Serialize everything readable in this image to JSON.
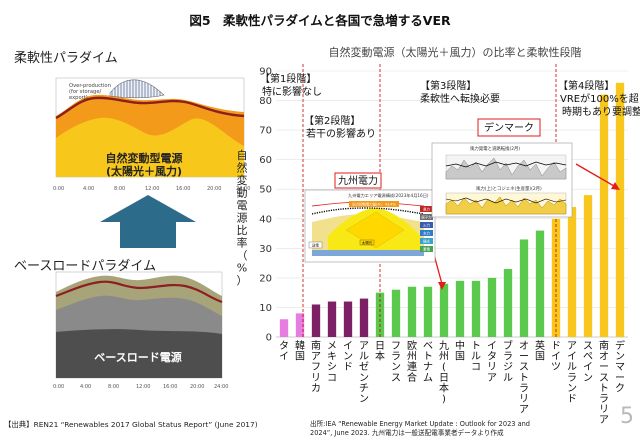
{
  "slide": {
    "title": "図5　柔軟性パラダイムと各国で急増するVER",
    "flex_paradigm_label": "柔軟性パラダイム",
    "base_paradigm_label": "ベースロードパラダイム",
    "variable_power_text": [
      "自然変動型電源",
      "(太陽光＋風力)"
    ],
    "baseload_text": "ベースロード電源",
    "overproduction_note": [
      "Over-production",
      "(for storage/",
      "export)"
    ],
    "time_ticks": [
      "0:00",
      "4:00",
      "8:00",
      "12:00",
      "16:00",
      "20:00",
      "24:00"
    ],
    "page_number": "5",
    "source_left": "【出典】REN21 “Renewables 2017 Global Status Report” (June 2017)",
    "source_right": [
      "出所:IEA “Renewable Energy Market Update : Outlook for 2023 and",
      "2024”, June 2023. 九州電力は一般送配電事業者データより作成"
    ]
  },
  "colors": {
    "solar_wind_yellow": "#f8c71b",
    "orange": "#f39a1a",
    "darkred": "#8e1f1e",
    "pink": "#e57ee0",
    "purple": "#7d2065",
    "green": "#5bc94d",
    "yellow_bar": "#f7c71d",
    "arrow_blue": "#2d6b8a",
    "callout_red": "#e31b1b"
  },
  "annotations": {
    "stage1": [
      "【第1段階】",
      "特に影響なし"
    ],
    "stage2": [
      "【第2段階】",
      "若干の影響あり"
    ],
    "stage3": [
      "【第3段階】",
      "柔軟性へ転換必要"
    ],
    "stage4": [
      "【第4段階】",
      "VREが100%を超える",
      "時期もあり要調整"
    ],
    "kyushu": "九州電力",
    "denmark": "デンマーク"
  },
  "chart_data": {
    "type": "bar",
    "title": "自然変動電源（太陽光＋風力）の比率と柔軟性段階",
    "ylabel": "自然変動電源比率（%）",
    "ylim": [
      0,
      90
    ],
    "yticks": [
      0,
      10,
      20,
      30,
      40,
      50,
      60,
      70,
      80,
      90
    ],
    "categories": [
      "タイ",
      "韓国",
      "南アフリカ",
      "メキシコ",
      "インド",
      "アルゼンチン",
      "日本",
      "フランス",
      "欧州連合",
      "ベトナム",
      "九州(日本)",
      "中国",
      "トルコ",
      "イタリア",
      "ブラジル",
      "オーストラリア",
      "英国",
      "ドイツ",
      "アイルランド",
      "スペイン",
      "南オーストラリア",
      "デンマーク"
    ],
    "values": [
      6,
      8,
      11,
      12,
      12,
      13,
      15,
      16,
      17,
      17,
      18,
      19,
      19,
      20,
      23,
      33,
      36,
      40,
      44,
      48,
      82,
      86
    ],
    "bar_colors": [
      "#e57ee0",
      "#e57ee0",
      "#7d2065",
      "#7d2065",
      "#7d2065",
      "#7d2065",
      "#5bc94d",
      "#5bc94d",
      "#5bc94d",
      "#5bc94d",
      "#5bc94d",
      "#5bc94d",
      "#5bc94d",
      "#5bc94d",
      "#5bc94d",
      "#5bc94d",
      "#5bc94d",
      "#f7c71d",
      "#f7c71d",
      "#f7c71d",
      "#f7c71d",
      "#f7c71d"
    ]
  },
  "inset_kyushu": {
    "title": "九州電力エリア電源構成(2023年4月16日)",
    "labels": [
      "出力抑制電力量(※)：43.4%",
      "太陽光",
      "風力",
      "原子力",
      "火力",
      "水力",
      "揚水",
      "蓄電",
      "送電"
    ]
  },
  "inset_denmark": {
    "title_top": "風力発電と道路転換(2月)",
    "title_bottom": "風力(上)とコジェネ(生産量)(2月)"
  }
}
